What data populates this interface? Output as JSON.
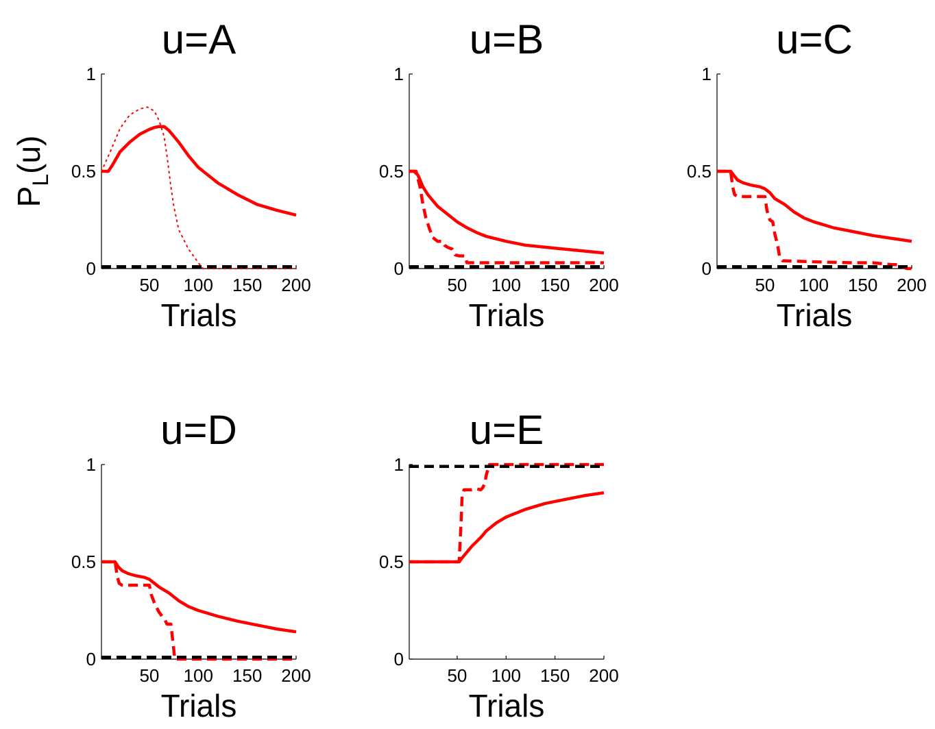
{
  "colors": {
    "red": "#ff0000",
    "black": "#000000",
    "background": "#ffffff"
  },
  "shared_ylabel": {
    "main": "P",
    "subscript": "L",
    "suffix": "(u)"
  },
  "chart_data": [
    {
      "type": "line",
      "title": "u=A",
      "xlabel": "Trials",
      "xlim": [
        1,
        200
      ],
      "ylim": [
        0,
        1
      ],
      "xticks": [
        50,
        100,
        150,
        200
      ],
      "yticks": [
        0,
        0.5,
        1
      ],
      "xtick_labels": [
        "50",
        "100",
        "150",
        "200"
      ],
      "ytick_labels": [
        "0",
        "0.5",
        "1"
      ],
      "series": [
        {
          "style": "solid",
          "color": "#ff0000",
          "x": [
            1,
            8,
            12,
            20,
            30,
            40,
            50,
            55,
            60,
            65,
            70,
            80,
            90,
            100,
            120,
            140,
            160,
            180,
            200
          ],
          "y": [
            0.5,
            0.5,
            0.53,
            0.6,
            0.65,
            0.69,
            0.715,
            0.725,
            0.73,
            0.73,
            0.71,
            0.65,
            0.58,
            0.52,
            0.44,
            0.38,
            0.33,
            0.3,
            0.275
          ]
        },
        {
          "style": "dotted",
          "color": "#ff0000",
          "x": [
            1,
            10,
            20,
            30,
            40,
            48,
            55,
            60,
            65,
            68,
            70,
            72,
            75,
            80,
            90,
            100,
            105,
            150,
            200
          ],
          "y": [
            0.5,
            0.6,
            0.72,
            0.79,
            0.82,
            0.83,
            0.81,
            0.76,
            0.68,
            0.58,
            0.5,
            0.42,
            0.32,
            0.2,
            0.1,
            0.03,
            0.0,
            0.0,
            0.0
          ]
        },
        {
          "style": "dashed",
          "color": "#000000",
          "x": [
            1,
            200
          ],
          "y": [
            0.01,
            0.01
          ]
        }
      ]
    },
    {
      "type": "line",
      "title": "u=B",
      "xlabel": "Trials",
      "xlim": [
        1,
        200
      ],
      "ylim": [
        0,
        1
      ],
      "xticks": [
        50,
        100,
        150,
        200
      ],
      "yticks": [
        0,
        0.5,
        1
      ],
      "xtick_labels": [
        "50",
        "100",
        "150",
        "200"
      ],
      "ytick_labels": [
        "0",
        "0.5",
        "1"
      ],
      "series": [
        {
          "style": "solid",
          "color": "#ff0000",
          "x": [
            1,
            6,
            10,
            15,
            20,
            30,
            40,
            50,
            60,
            70,
            80,
            100,
            120,
            150,
            200
          ],
          "y": [
            0.5,
            0.5,
            0.48,
            0.42,
            0.38,
            0.32,
            0.28,
            0.24,
            0.21,
            0.185,
            0.165,
            0.14,
            0.12,
            0.105,
            0.08
          ]
        },
        {
          "style": "dashed",
          "color": "#ff0000",
          "x": [
            1,
            8,
            12,
            15,
            18,
            22,
            25,
            30,
            35,
            37,
            40,
            45,
            48,
            52,
            58,
            60,
            100,
            150,
            200
          ],
          "y": [
            0.5,
            0.5,
            0.42,
            0.33,
            0.26,
            0.2,
            0.16,
            0.14,
            0.14,
            0.12,
            0.11,
            0.1,
            0.07,
            0.065,
            0.065,
            0.03,
            0.03,
            0.03,
            0.03
          ]
        },
        {
          "style": "dashed",
          "color": "#000000",
          "x": [
            1,
            200
          ],
          "y": [
            0.01,
            0.01
          ]
        }
      ]
    },
    {
      "type": "line",
      "title": "u=C",
      "xlabel": "Trials",
      "xlim": [
        1,
        200
      ],
      "ylim": [
        0,
        1
      ],
      "xticks": [
        50,
        100,
        150,
        200
      ],
      "yticks": [
        0,
        0.5,
        1
      ],
      "xtick_labels": [
        "50",
        "100",
        "150",
        "200"
      ],
      "ytick_labels": [
        "0",
        "0.5",
        "1"
      ],
      "series": [
        {
          "style": "solid",
          "color": "#ff0000",
          "x": [
            1,
            15,
            18,
            22,
            28,
            35,
            45,
            50,
            55,
            60,
            70,
            80,
            90,
            100,
            120,
            140,
            160,
            180,
            200
          ],
          "y": [
            0.5,
            0.5,
            0.48,
            0.455,
            0.44,
            0.43,
            0.42,
            0.41,
            0.39,
            0.36,
            0.33,
            0.29,
            0.26,
            0.24,
            0.21,
            0.19,
            0.17,
            0.155,
            0.14
          ]
        },
        {
          "style": "dashed",
          "color": "#ff0000",
          "x": [
            1,
            15,
            17,
            19,
            22,
            50,
            52,
            55,
            58,
            60,
            63,
            65,
            68,
            70,
            100,
            140,
            160,
            180,
            185,
            190,
            195,
            200
          ],
          "y": [
            0.5,
            0.5,
            0.42,
            0.38,
            0.37,
            0.37,
            0.3,
            0.25,
            0.24,
            0.18,
            0.12,
            0.06,
            0.04,
            0.04,
            0.035,
            0.03,
            0.03,
            0.02,
            0.02,
            0.01,
            0.0,
            0.0
          ]
        },
        {
          "style": "dashed",
          "color": "#000000",
          "x": [
            1,
            200
          ],
          "y": [
            0.01,
            0.01
          ]
        }
      ]
    },
    {
      "type": "line",
      "title": "u=D",
      "xlabel": "Trials",
      "xlim": [
        1,
        200
      ],
      "ylim": [
        0,
        1
      ],
      "xticks": [
        50,
        100,
        150,
        200
      ],
      "yticks": [
        0,
        0.5,
        1
      ],
      "xtick_labels": [
        "50",
        "100",
        "150",
        "200"
      ],
      "ytick_labels": [
        "0",
        "0.5",
        "1"
      ],
      "series": [
        {
          "style": "solid",
          "color": "#ff0000",
          "x": [
            1,
            15,
            18,
            22,
            28,
            35,
            45,
            50,
            55,
            60,
            70,
            80,
            90,
            100,
            120,
            140,
            160,
            180,
            200
          ],
          "y": [
            0.5,
            0.5,
            0.475,
            0.455,
            0.44,
            0.43,
            0.42,
            0.41,
            0.39,
            0.37,
            0.34,
            0.3,
            0.27,
            0.25,
            0.22,
            0.195,
            0.175,
            0.155,
            0.14
          ]
        },
        {
          "style": "dashed",
          "color": "#ff0000",
          "x": [
            1,
            15,
            17,
            19,
            22,
            50,
            52,
            55,
            58,
            60,
            63,
            66,
            68,
            72,
            74,
            76,
            78,
            100,
            150,
            200
          ],
          "y": [
            0.5,
            0.5,
            0.43,
            0.39,
            0.38,
            0.38,
            0.33,
            0.29,
            0.26,
            0.24,
            0.22,
            0.2,
            0.18,
            0.18,
            0.09,
            0.0,
            0.0,
            0.0,
            0.0,
            0.0
          ]
        },
        {
          "style": "dashed",
          "color": "#000000",
          "x": [
            1,
            200
          ],
          "y": [
            0.01,
            0.01
          ]
        }
      ]
    },
    {
      "type": "line",
      "title": "u=E",
      "xlabel": "Trials",
      "xlim": [
        1,
        200
      ],
      "ylim": [
        0,
        1
      ],
      "xticks": [
        50,
        100,
        150,
        200
      ],
      "yticks": [
        0,
        0.5,
        1
      ],
      "xtick_labels": [
        "50",
        "100",
        "150",
        "200"
      ],
      "ytick_labels": [
        "0",
        "0.5",
        "1"
      ],
      "series": [
        {
          "style": "solid",
          "color": "#ff0000",
          "x": [
            1,
            52,
            55,
            60,
            65,
            70,
            75,
            80,
            90,
            100,
            120,
            140,
            160,
            180,
            200
          ],
          "y": [
            0.5,
            0.5,
            0.52,
            0.55,
            0.58,
            0.605,
            0.63,
            0.66,
            0.7,
            0.73,
            0.77,
            0.8,
            0.82,
            0.84,
            0.855
          ]
        },
        {
          "style": "dashed",
          "color": "#ff0000",
          "x": [
            1,
            52,
            54,
            55,
            57,
            65,
            70,
            74,
            76,
            78,
            80,
            83,
            100,
            150,
            200
          ],
          "y": [
            0.5,
            0.5,
            0.7,
            0.84,
            0.87,
            0.87,
            0.875,
            0.87,
            0.88,
            0.9,
            0.95,
            1.0,
            1.0,
            1.0,
            1.0
          ]
        },
        {
          "style": "dashed",
          "color": "#000000",
          "x": [
            1,
            200
          ],
          "y": [
            0.99,
            0.99
          ]
        }
      ]
    }
  ]
}
